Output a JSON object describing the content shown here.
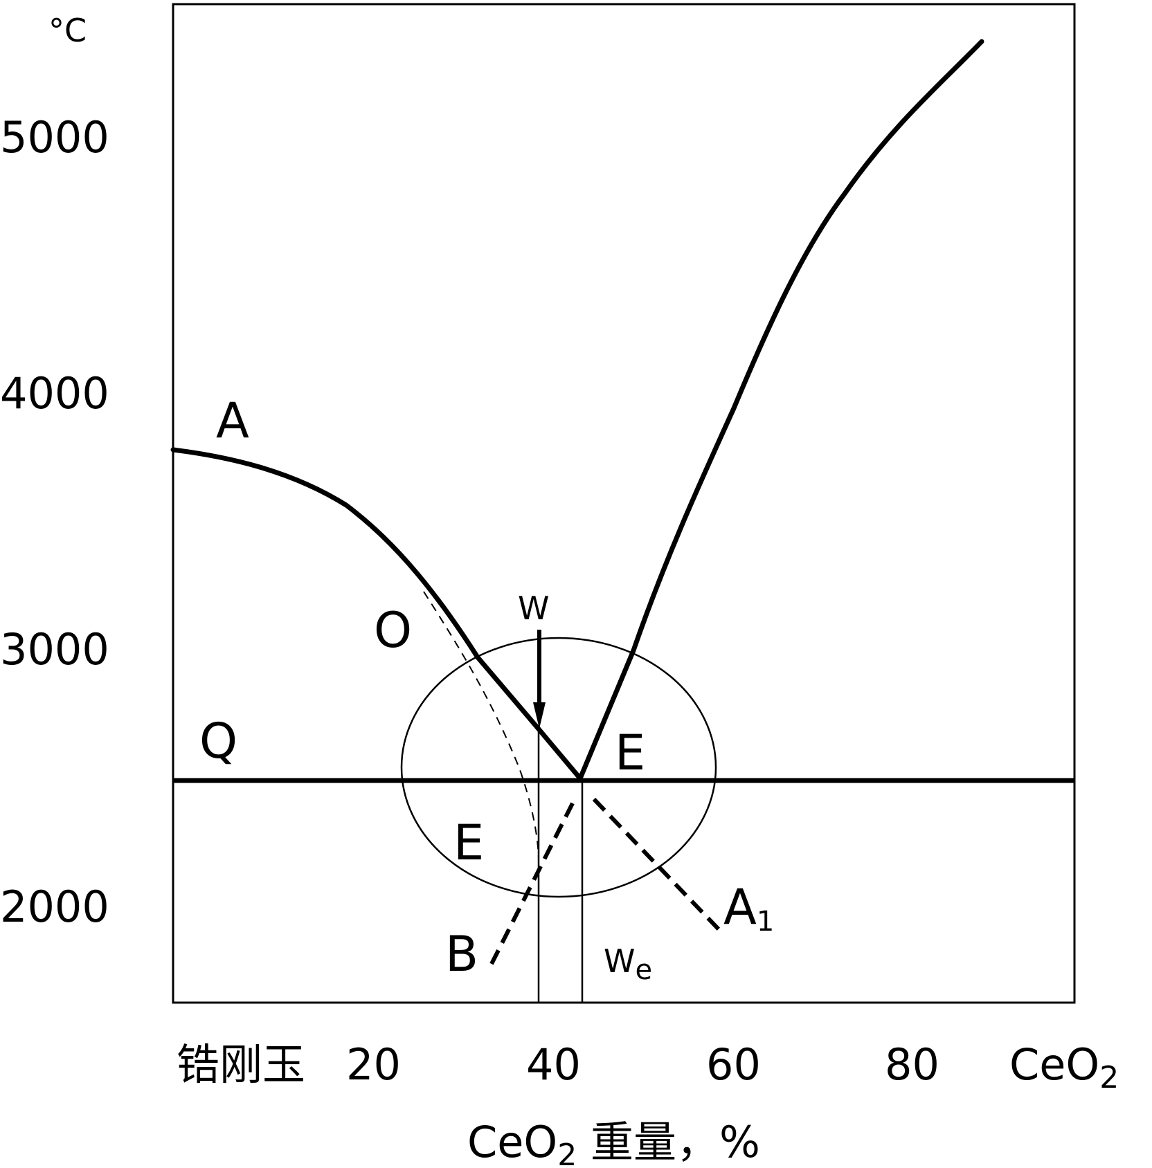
{
  "y_axis": {
    "unit": "°C",
    "ticks": [
      "5000",
      "4000",
      "3000",
      "2000"
    ]
  },
  "x_axis": {
    "left_end": "锆刚玉",
    "ticks": [
      "20",
      "40",
      "60",
      "80"
    ],
    "right_end": "CeO",
    "right_end_sub": "2",
    "title_prefix": "CeO",
    "title_sub": "2",
    "title_suffix": " 重量，%"
  },
  "points": {
    "A": "A",
    "O": "O",
    "W": "W",
    "Q": "Q",
    "E_upper": "E",
    "E_lower": "E",
    "A1": "A",
    "A1_sub": "1",
    "B": "B",
    "We": "W",
    "We_sub": "e"
  },
  "colors": {
    "line": "#000000",
    "background": "#ffffff"
  }
}
